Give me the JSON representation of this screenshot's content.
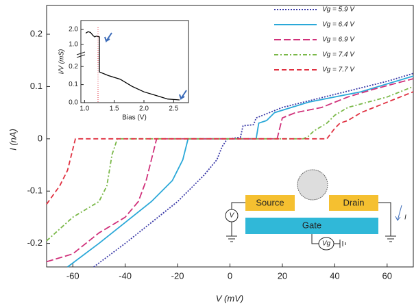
{
  "chart_data": {
    "type": "line",
    "xlabel": "V (mV)",
    "ylabel": "I (nA)",
    "xlim": [
      -70,
      70
    ],
    "ylim": [
      -0.245,
      0.255
    ],
    "xticks": [
      -60,
      -40,
      -20,
      0,
      20,
      40,
      60
    ],
    "yticks": [
      -0.2,
      -0.1,
      0,
      0.1,
      0.2
    ],
    "legend": "upper right",
    "series": [
      {
        "name": "Vg = 5.9 V",
        "color": "#3a3aa8",
        "dash": "2,2",
        "x": [
          -52,
          -40,
          -30,
          -20,
          -10,
          -5,
          -3,
          -1,
          0,
          4,
          5,
          9,
          10,
          20,
          40,
          60,
          70
        ],
        "values": [
          -0.245,
          -0.2,
          -0.16,
          -0.12,
          -0.07,
          -0.04,
          -0.015,
          0,
          0,
          0.003,
          0.025,
          0.027,
          0.04,
          0.06,
          0.085,
          0.11,
          0.125
        ]
      },
      {
        "name": "Vg = 6.4 V",
        "color": "#2aa8d8",
        "dash": "",
        "x": [
          -62,
          -50,
          -40,
          -30,
          -22,
          -18,
          -16,
          10,
          11,
          14,
          17,
          30,
          50,
          70
        ],
        "values": [
          -0.245,
          -0.2,
          -0.16,
          -0.12,
          -0.08,
          -0.04,
          0,
          0,
          0.03,
          0.035,
          0.05,
          0.07,
          0.09,
          0.12
        ]
      },
      {
        "name": "Vg = 6.9 V",
        "color": "#d0307a",
        "dash": "10,4",
        "x": [
          -70,
          -60,
          -50,
          -40,
          -35,
          -32,
          -29,
          -28,
          18,
          20,
          25,
          35,
          45,
          55,
          70
        ],
        "values": [
          -0.235,
          -0.22,
          -0.18,
          -0.15,
          -0.12,
          -0.08,
          -0.02,
          0,
          0,
          0.04,
          0.05,
          0.06,
          0.08,
          0.095,
          0.115
        ]
      },
      {
        "name": "Vg = 7.4 V",
        "color": "#7ab848",
        "dash": "6,3,2,3",
        "x": [
          -70,
          -60,
          -50,
          -47,
          -45,
          -43,
          28,
          30,
          32,
          37,
          40,
          45,
          60,
          70
        ],
        "values": [
          -0.195,
          -0.15,
          -0.12,
          -0.09,
          -0.03,
          0,
          0,
          0.005,
          0.015,
          0.03,
          0.045,
          0.06,
          0.08,
          0.1
        ]
      },
      {
        "name": "Vg = 7.7 V",
        "color": "#e03040",
        "dash": "7,4",
        "x": [
          -70,
          -65,
          -62,
          -59,
          37,
          40,
          42,
          45,
          50,
          60,
          70
        ],
        "values": [
          -0.125,
          -0.09,
          -0.06,
          0,
          0,
          0.02,
          0.03,
          0.035,
          0.05,
          0.07,
          0.09
        ]
      }
    ],
    "inset": {
      "xlabel": "Bias (V)",
      "ylabel": "I/V (mS)",
      "xlim": [
        0.95,
        2.75
      ],
      "xticks": [
        {
          "value": 1,
          "label": "1.0"
        },
        1.5,
        {
          "value": 2,
          "label": "2.0"
        },
        2.5
      ],
      "panels": [
        {
          "ylim": [
            0,
            0.25
          ],
          "yticks": [
            {
              "value": 0,
              "label": "0.0"
            },
            0.1,
            0.2
          ]
        },
        {
          "ylim": [
            0.3,
            2.6
          ],
          "yticks": [
            {
              "value": 1,
              "label": "1.0"
            },
            {
              "value": 2,
              "label": "2.0"
            }
          ]
        }
      ],
      "color": "#000000",
      "x": [
        1.02,
        1.06,
        1.1,
        1.14,
        1.17,
        1.2,
        1.25,
        1.25,
        1.4,
        1.6,
        1.8,
        2.0,
        2.2,
        2.4,
        2.6
      ],
      "values": [
        1.75,
        1.85,
        1.8,
        1.6,
        1.5,
        1.55,
        1.5,
        0.17,
        0.15,
        0.13,
        0.09,
        0.06,
        0.04,
        0.02,
        0.015
      ]
    }
  },
  "schematic": {
    "source": "Source",
    "drain": "Drain",
    "gate": "Gate",
    "voltmeter": "V",
    "gate_voltage": "Vg",
    "current": "I"
  }
}
